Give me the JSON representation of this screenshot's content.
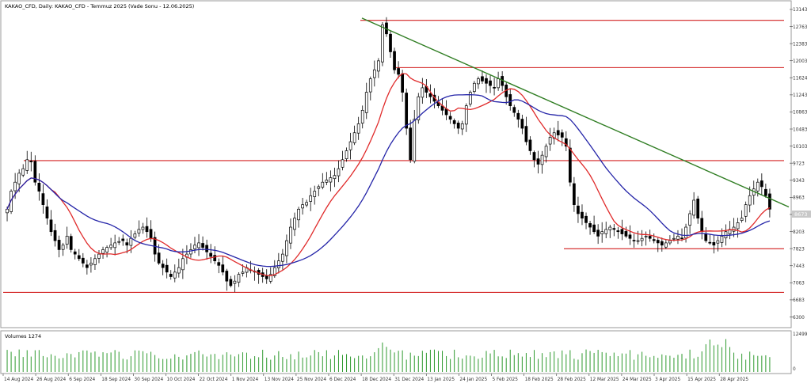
{
  "title": "KAKAO_CFD, Daily: KAKAO_CFD - Temmuz 2025 (Vade Sonu - 12.06.2025)",
  "volume_label": "Volumes 1274",
  "current_price_label": "8673",
  "chart_data": [
    {
      "type": "candlestick",
      "title": "KAKAO_CFD, Daily: KAKAO_CFD - Temmuz 2025 (Vade Sonu - 12.06.2025)",
      "y_ticks": [
        6300,
        6683,
        7063,
        7443,
        7823,
        8203,
        8583,
        8963,
        9343,
        9723,
        10103,
        10483,
        10863,
        11243,
        11624,
        12003,
        12383,
        12763,
        13143
      ],
      "ylim": [
        6100,
        13300
      ],
      "x_ticks": [
        "14 Aug 2024",
        "26 Aug 2024",
        "6 Sep 2024",
        "18 Sep 2024",
        "30 Sep 2024",
        "10 Oct 2024",
        "22 Oct 2024",
        "1 Nov 2024",
        "13 Nov 2024",
        "25 Nov 2024",
        "6 Dec 2024",
        "18 Dec 2024",
        "31 Dec 2024",
        "13 Jan 2025",
        "24 Jan 2025",
        "5 Feb 2025",
        "18 Feb 2025",
        "28 Feb 2025",
        "12 Mar 2025",
        "24 Mar 2025",
        "3 Apr 2025",
        "15 Apr 2025",
        "28 Apr 2025"
      ],
      "close": [
        8700,
        9100,
        9300,
        9500,
        9600,
        9800,
        9750,
        9300,
        9100,
        8800,
        8500,
        8200,
        8000,
        7800,
        7900,
        8100,
        7800,
        7700,
        7600,
        7500,
        7400,
        7500,
        7600,
        7700,
        7800,
        7850,
        7900,
        7950,
        7980,
        8000,
        7900,
        8050,
        8150,
        8250,
        8300,
        8200,
        8050,
        7700,
        7500,
        7400,
        7300,
        7200,
        7300,
        7400,
        7600,
        7700,
        7800,
        7900,
        7950,
        7850,
        7750,
        7650,
        7550,
        7450,
        7300,
        7100,
        7000,
        7100,
        7250,
        7300,
        7400,
        7350,
        7300,
        7250,
        7200,
        7150,
        7250,
        7400,
        7550,
        7700,
        8000,
        8300,
        8500,
        8700,
        8800,
        8850,
        9000,
        9100,
        9200,
        9300,
        9350,
        9400,
        9450,
        9600,
        9800,
        10000,
        10200,
        10400,
        10600,
        10900,
        11300,
        11600,
        11800,
        12000,
        12800,
        12600,
        12200,
        11800,
        11700,
        11300,
        10500,
        9800,
        10700,
        11200,
        11400,
        11300,
        11200,
        11100,
        11000,
        10900,
        10800,
        10700,
        10600,
        10500,
        10600,
        11000,
        11300,
        11500,
        11600,
        11550,
        11500,
        11450,
        11400,
        11600,
        11450,
        11200,
        11000,
        10850,
        10700,
        10500,
        10200,
        10000,
        9800,
        9700,
        9900,
        10100,
        10300,
        10400,
        10350,
        10300,
        10100,
        9300,
        8800,
        8600,
        8500,
        8400,
        8300,
        8200,
        8100,
        8200,
        8250,
        8300,
        8250,
        8200,
        8150,
        8100,
        8050,
        8000,
        8000,
        8050,
        8100,
        8050,
        8000,
        7950,
        7900,
        7950,
        8000,
        8050,
        8100,
        8050,
        8300,
        8600,
        8900,
        8500,
        8200,
        8000,
        7950,
        7900,
        8000,
        8100,
        8200,
        8250,
        8300,
        8400,
        8500,
        8800,
        9000,
        9150,
        9300,
        9200,
        9000,
        8700
      ]
    },
    {
      "type": "bar",
      "title": "Volumes 1274",
      "y_ticks": [
        0,
        12499
      ],
      "ylim": [
        0,
        12499
      ]
    }
  ]
}
